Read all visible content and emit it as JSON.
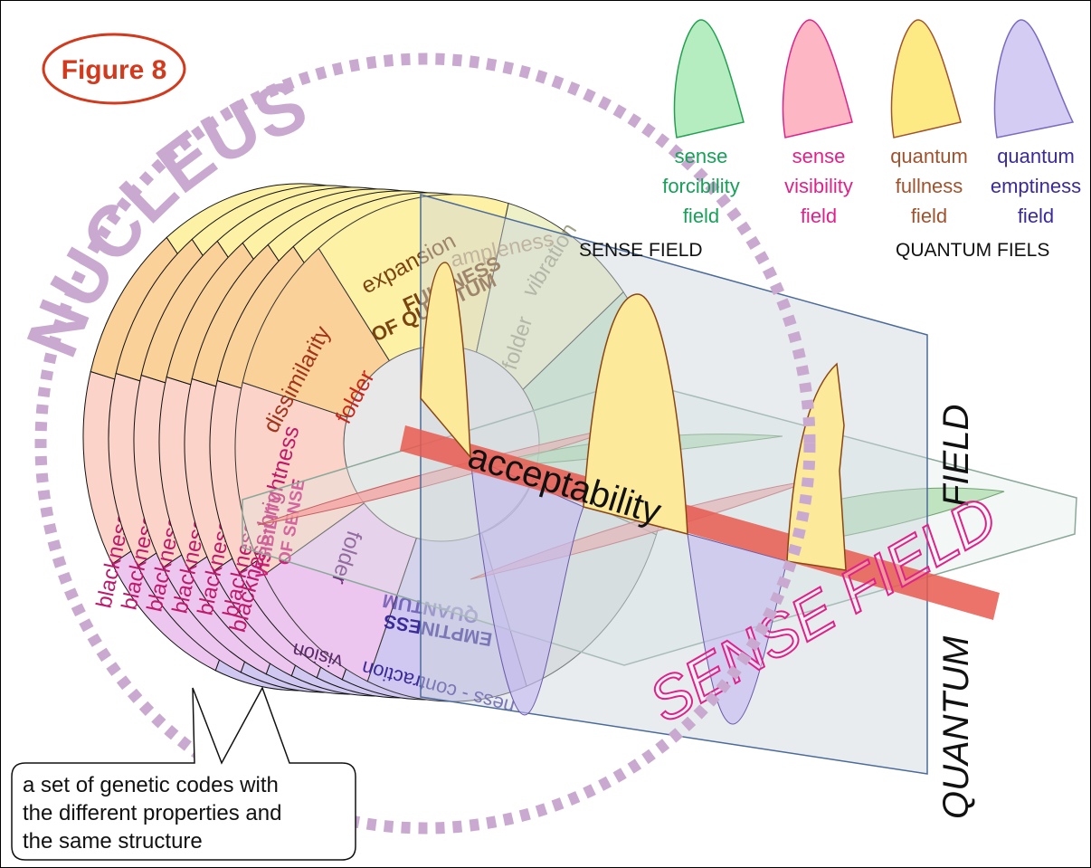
{
  "header": {
    "figure_label": "Figure 8"
  },
  "nucleus": {
    "label": "NUCLEUS"
  },
  "legend": {
    "items": [
      {
        "lines": [
          "sense",
          "forcibility",
          "field"
        ]
      },
      {
        "lines": [
          "sense",
          "visibility",
          "field"
        ]
      },
      {
        "lines": [
          "quantum",
          "fullness",
          "field"
        ]
      },
      {
        "lines": [
          "quantum",
          "emptiness",
          "field"
        ]
      }
    ],
    "groups": [
      "SENSE  FIELD",
      "QUANTUM FIELS"
    ]
  },
  "wheel": {
    "sectors": {
      "expansion": "expansion",
      "fullness": [
        "FULLNESS",
        "OF QUANTUM"
      ],
      "ampleness": "ampleness",
      "vibration": "vibration",
      "folder_top": "folder",
      "dissimilarity": "dissimilarity",
      "folder_left": "folder",
      "visibility": [
        "VISIBILITY",
        "OF SENSE"
      ],
      "blackness": "blackness-brightness",
      "folder_bottom": "folder",
      "vision": "vision",
      "emptiness": [
        "EMPTINESS",
        "QUANTUM"
      ],
      "contraction": "ness - contraction"
    },
    "back_disks": [
      "blackness-brightness",
      "blackness-brightness",
      "blackness-brightness",
      "blackness-brightness",
      "blackness-brightness",
      "blackness-brightness"
    ]
  },
  "planes": {
    "axis_label": "acceptability",
    "vertical_top": "FIELD",
    "vertical_bottom": "QUANTUM",
    "horizontal": "SENSE FIELD"
  },
  "callout": {
    "lines": [
      "a set of genetic codes with",
      "the different properties and",
      "the same structure"
    ]
  }
}
